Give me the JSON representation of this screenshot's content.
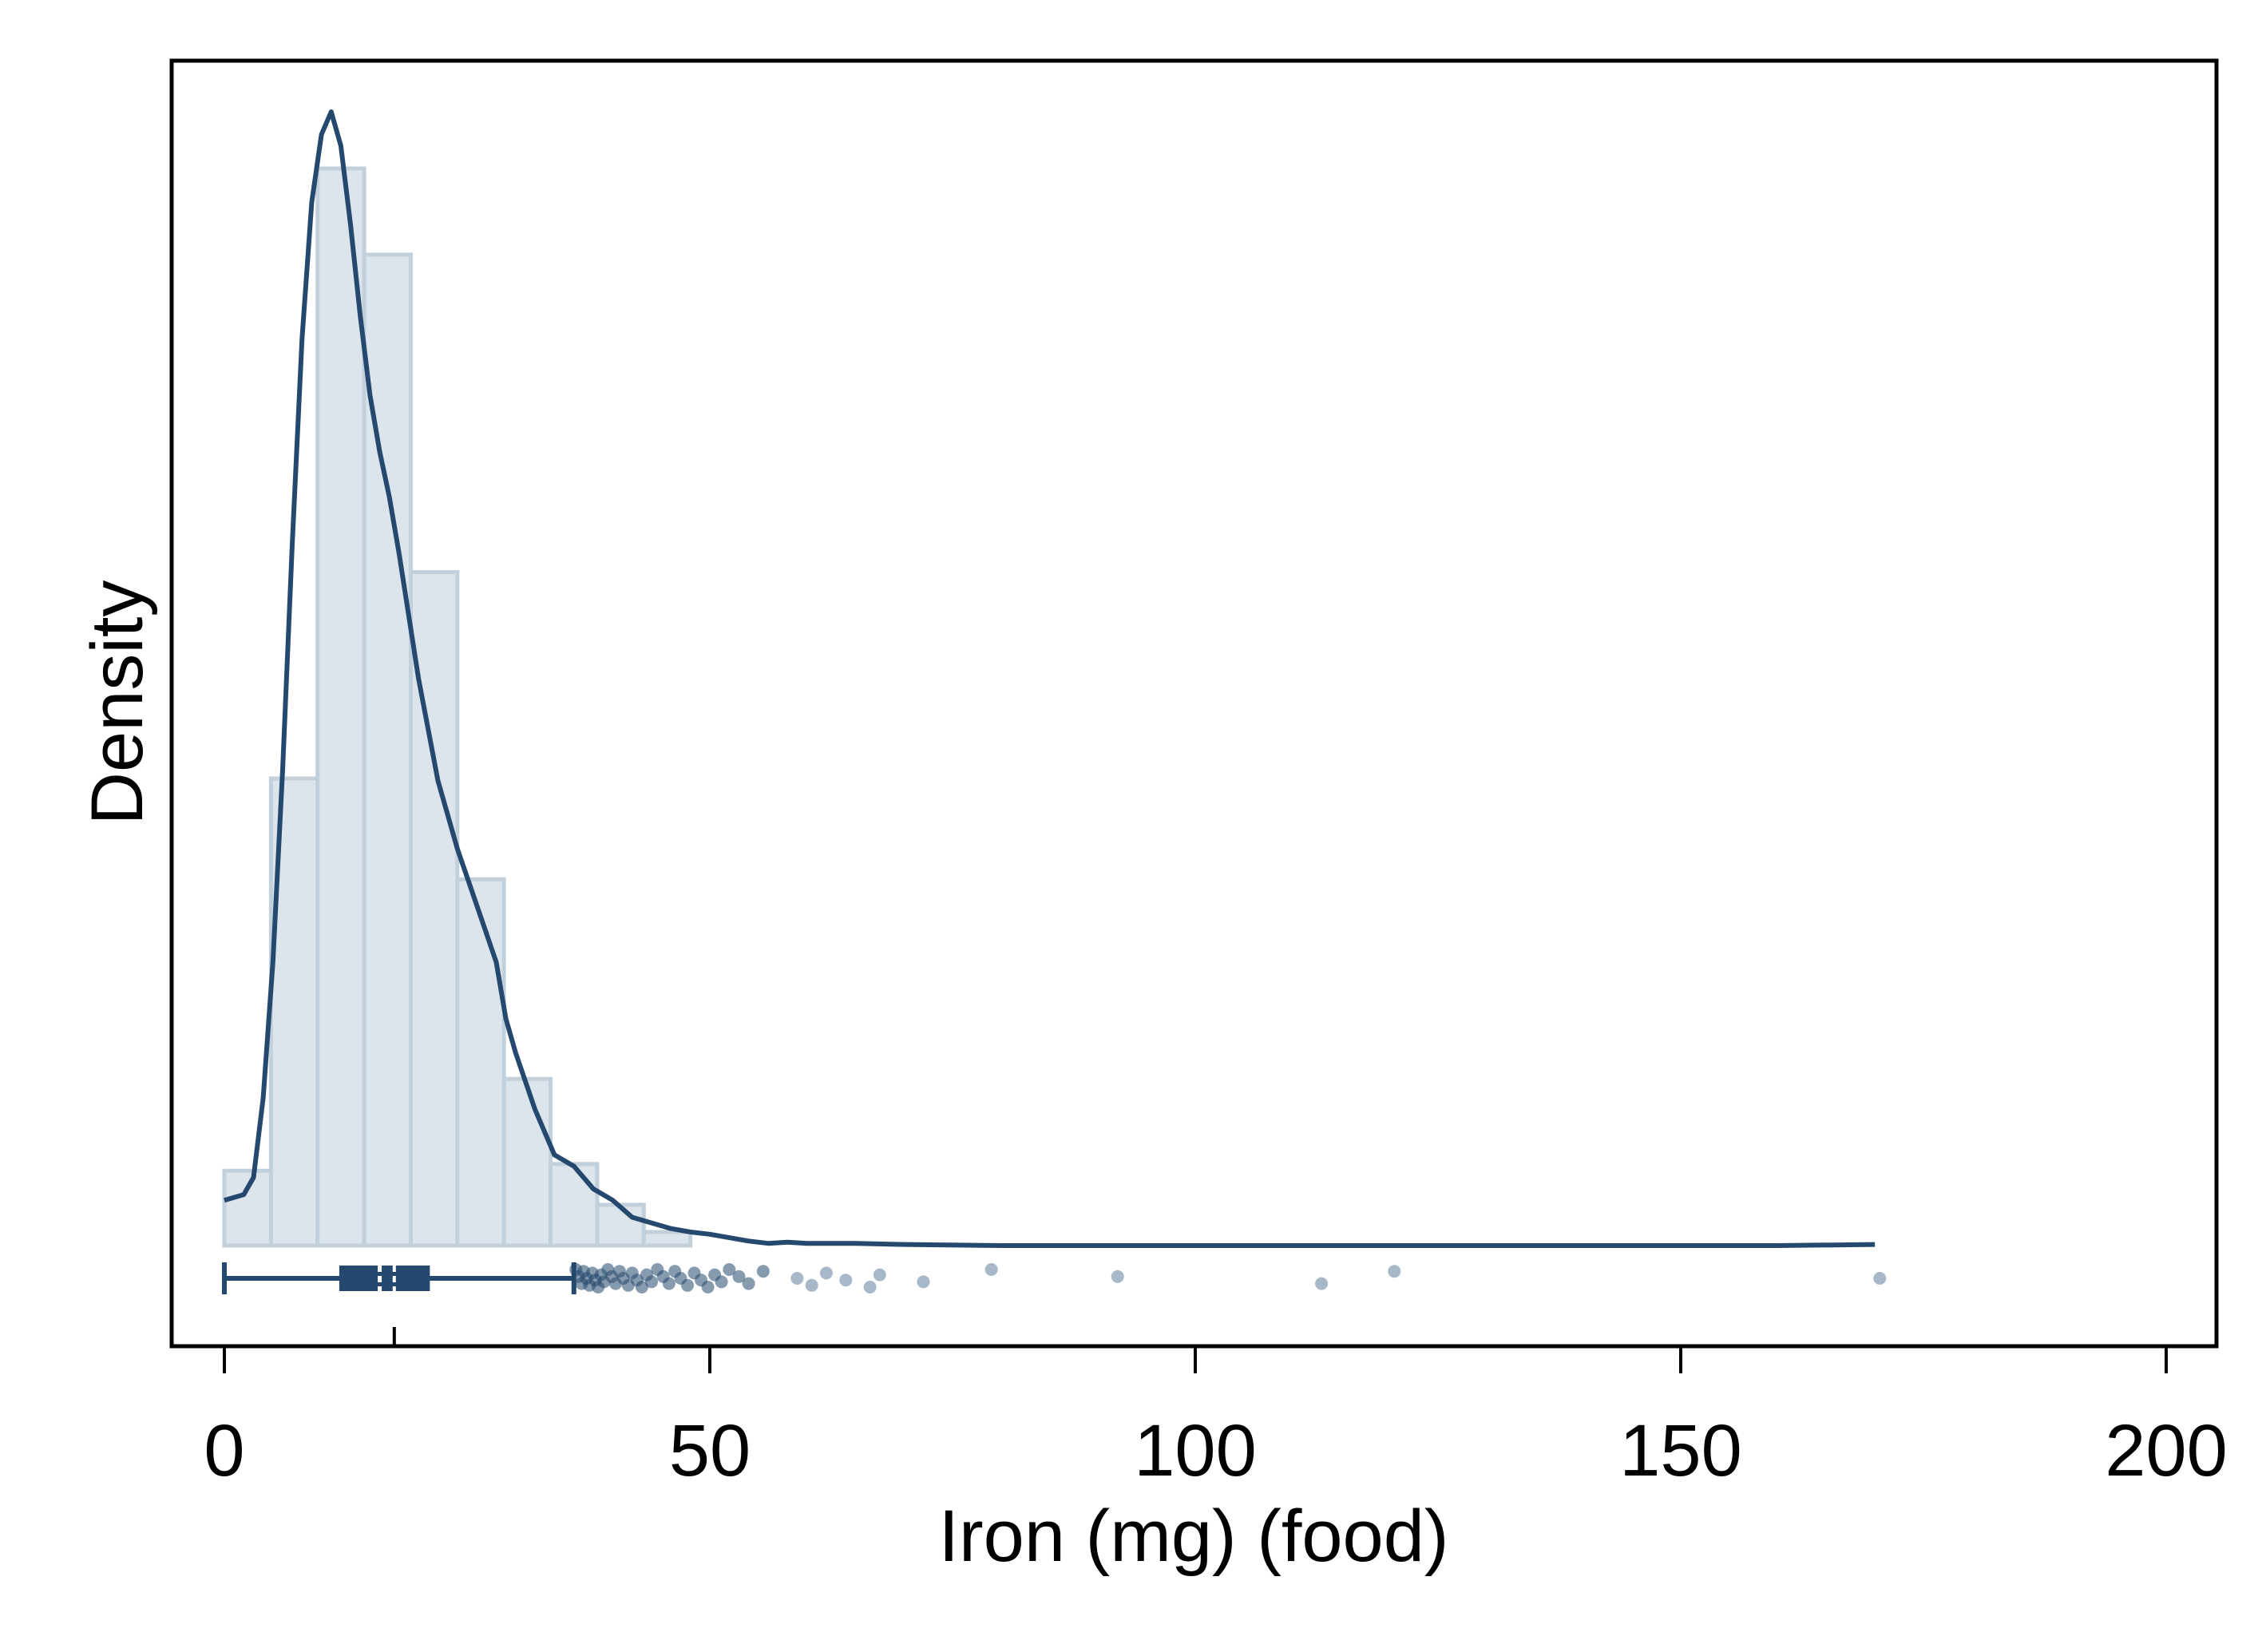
{
  "chart_data": {
    "type": "histogram",
    "title": "",
    "xlabel": "Iron (mg) (food)",
    "ylabel": "Density",
    "xlim": [
      -5.5,
      206
    ],
    "xticks": [
      0,
      50,
      100,
      150,
      200
    ],
    "grid": false,
    "legend": "none",
    "colors": {
      "bar_fill": "#dce4ec",
      "bar_edge": "#c2d0dc",
      "line": "#25496e",
      "box": "#25496e",
      "outlier": "#8aa1b5",
      "frame": "#000000"
    },
    "histogram": {
      "bin_width": 4.8,
      "bin_start": 0,
      "density_relative": [
        0.066,
        0.412,
        0.95,
        0.874,
        0.594,
        0.323,
        0.147,
        0.072,
        0.036,
        0.012
      ]
    },
    "kde": {
      "x": [
        0,
        2,
        3,
        4,
        5,
        6,
        7,
        8,
        9,
        10,
        11,
        12,
        13,
        14,
        15,
        16,
        17,
        18,
        20,
        22,
        24,
        26,
        28,
        29,
        30,
        32,
        34,
        36,
        38,
        40,
        42,
        44,
        46,
        48,
        50,
        52,
        54,
        56,
        58,
        60,
        65,
        70,
        80,
        90,
        100,
        110,
        120,
        130,
        140,
        150,
        160,
        170
      ],
      "y": [
        0.04,
        0.045,
        0.06,
        0.13,
        0.25,
        0.42,
        0.62,
        0.8,
        0.92,
        0.98,
        1.0,
        0.97,
        0.9,
        0.82,
        0.75,
        0.7,
        0.66,
        0.61,
        0.5,
        0.41,
        0.35,
        0.3,
        0.25,
        0.2,
        0.17,
        0.12,
        0.08,
        0.07,
        0.05,
        0.04,
        0.025,
        0.02,
        0.015,
        0.012,
        0.01,
        0.007,
        0.004,
        0.002,
        0.003,
        0.002,
        0.002,
        0.001,
        0.0,
        0.0,
        0.0,
        0.0,
        0.0,
        0.0,
        0.0,
        0.0,
        0.0,
        0.001
      ]
    },
    "boxplot": {
      "whisker_low": 0,
      "q1": 12,
      "median": 16,
      "mean": 17.5,
      "q3": 21,
      "whisker_high": 36,
      "outliers": [
        36.2,
        36.5,
        36.8,
        37.0,
        37.3,
        37.6,
        37.9,
        38.2,
        38.5,
        38.8,
        39.1,
        39.5,
        39.9,
        40.3,
        40.7,
        41.1,
        41.6,
        42.0,
        42.5,
        43.0,
        43.5,
        44.0,
        44.6,
        45.2,
        45.8,
        46.4,
        47.0,
        47.7,
        48.4,
        49.1,
        49.8,
        50.5,
        51.2,
        52.0,
        53.0,
        54.0,
        55.5,
        59.0,
        60.5,
        62.0,
        64.0,
        66.5,
        67.5,
        72.0,
        79.0,
        92.0,
        113.0,
        120.5,
        170.5
      ]
    }
  }
}
